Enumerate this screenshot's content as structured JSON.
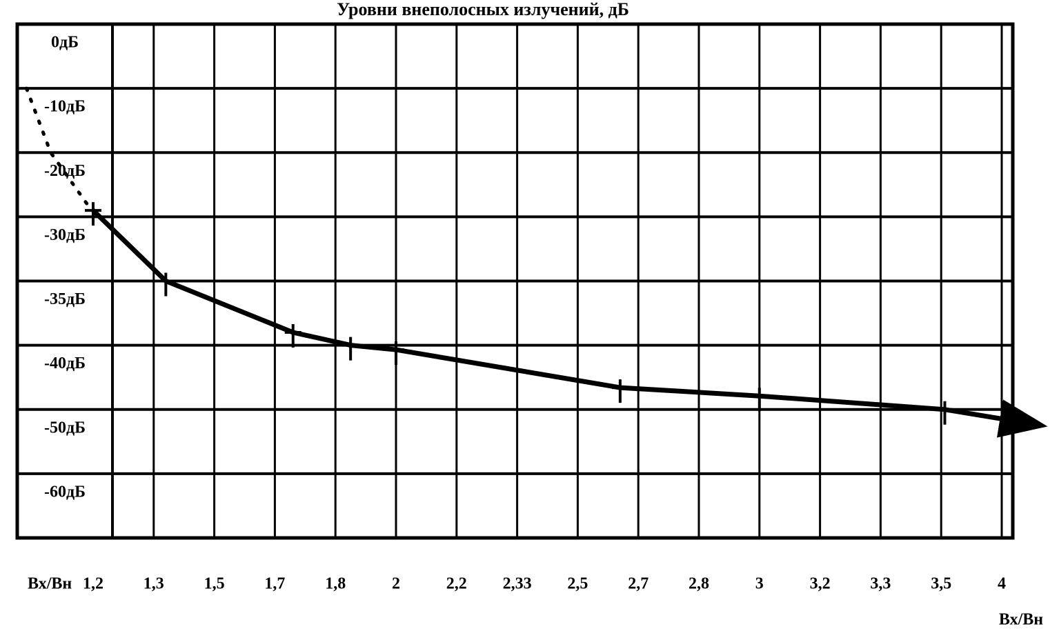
{
  "chart_data": {
    "type": "line",
    "title": "Уровни внеполосных излучений, дБ",
    "x_label": "Вх/Вн",
    "xticks": [
      {
        "value": 1.2,
        "label": "1,2"
      },
      {
        "value": 1.3,
        "label": "1,3"
      },
      {
        "value": 1.5,
        "label": "1,5"
      },
      {
        "value": 1.7,
        "label": "1,7"
      },
      {
        "value": 1.8,
        "label": "1,8"
      },
      2,
      {
        "value": 2.2,
        "label": "2,2"
      },
      {
        "value": 2.33,
        "label": "2,33"
      },
      {
        "value": 2.5,
        "label": "2,5"
      },
      {
        "value": 2.7,
        "label": "2,7"
      },
      {
        "value": 2.8,
        "label": "2,8"
      },
      3,
      {
        "value": 3.2,
        "label": "3,2"
      },
      {
        "value": 3.3,
        "label": "3,3"
      },
      {
        "value": 3.5,
        "label": "3,5"
      },
      4
    ],
    "yticks": [
      {
        "value": 0,
        "label": "0дБ"
      },
      {
        "value": -10,
        "label": "-10дБ"
      },
      {
        "value": -20,
        "label": "-20дБ"
      },
      {
        "value": -30,
        "label": "-30дБ"
      },
      {
        "value": -35,
        "label": "-35дБ"
      },
      {
        "value": -40,
        "label": "-40дБ"
      },
      {
        "value": -50,
        "label": "-50дБ"
      },
      {
        "value": -60,
        "label": "-60дБ"
      }
    ],
    "grid": true,
    "series": [
      {
        "color": "#000000",
        "style": "dotted",
        "x": [
          1.09,
          1.13,
          1.19
        ],
        "values": [
          -10,
          -20,
          -28
        ]
      },
      {
        "color": "#000000",
        "style": "solid",
        "x": [
          1.2,
          1.34,
          1.73,
          1.85,
          2.0,
          2.64,
          3.0,
          3.53,
          4.3
        ],
        "values": [
          -29,
          -35,
          -39,
          -40,
          -40.7,
          -46.6,
          -47.9,
          -50,
          -52.4
        ]
      }
    ]
  }
}
